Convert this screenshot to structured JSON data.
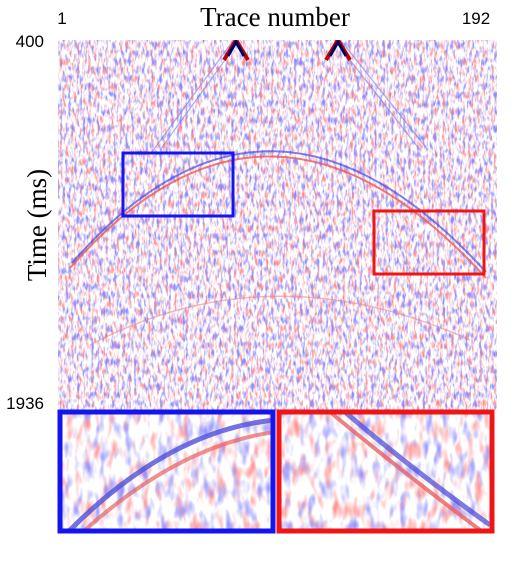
{
  "figure": {
    "title": "Trace number",
    "ylabel": "Time (ms)",
    "x_tick_labels": [
      "1",
      "192"
    ],
    "y_tick_labels": [
      "400",
      "1936"
    ]
  }
}
